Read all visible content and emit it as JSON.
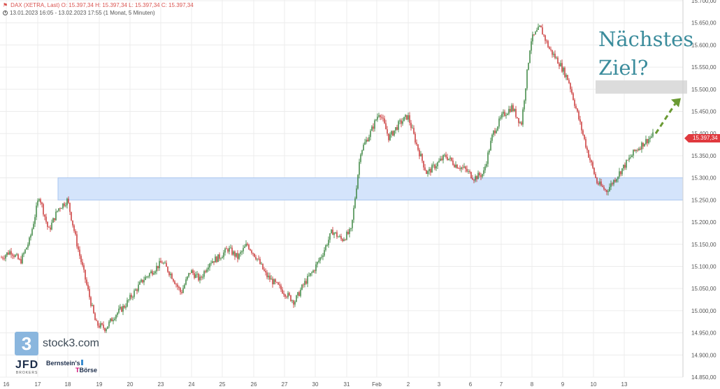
{
  "header": {
    "symbol_icon": "flag-icon",
    "line1": "DAX (XETRA, Last)  O: 15.397,34  H: 15.397,34  L: 15.397,34  C: 15.397,34",
    "line2": "13.01.2023 16:05 - 13.02.2023 17:55  (1 Monat, 5 Minuten)"
  },
  "annotation": {
    "line1": "Nächstes",
    "line2": "Ziel?"
  },
  "price_tag": "15.397,34",
  "logos": {
    "stock3_mark": "3",
    "stock3_word": "stock3.com",
    "jfd": "JFD",
    "jfd_sub": "BROKERS",
    "bernstein_line1": "Bernstein's",
    "bernstein_line2": "Börse"
  },
  "colors": {
    "up": "#2e7d32",
    "down": "#c62828",
    "support_zone": "#d4e4fb",
    "support_border": "#a9c6f0",
    "target_zone": "#dcdcdc",
    "arrow": "#6a9a33",
    "grid": "#ececec"
  },
  "chart_data": {
    "type": "candlestick",
    "title": "",
    "xlabel": "",
    "ylabel": "",
    "ylim": [
      14850,
      15700
    ],
    "y_ticks": [
      "14.850,00",
      "14.900,00",
      "14.950,00",
      "15.000,00",
      "15.050,00",
      "15.100,00",
      "15.150,00",
      "15.200,00",
      "15.250,00",
      "15.300,00",
      "15.350,00",
      "15.400,00",
      "15.450,00",
      "15.500,00",
      "15.550,00",
      "15.600,00",
      "15.650,00",
      "15.700,00"
    ],
    "x_ticks": [
      "16",
      "17",
      "18",
      "19",
      "20",
      "23",
      "24",
      "25",
      "26",
      "27",
      "30",
      "31",
      "Feb",
      "2",
      "3",
      "6",
      "7",
      "8",
      "9",
      "10",
      "13"
    ],
    "grid": true,
    "last_price": 15397.34,
    "zones": [
      {
        "name": "support",
        "from": 15250,
        "to": 15300,
        "start": "18"
      },
      {
        "name": "target",
        "from": 15490,
        "to": 15520,
        "start": "10"
      }
    ],
    "arrow": {
      "from": 15400,
      "to": 15480
    },
    "price_path": [
      [
        "16",
        15120
      ],
      [
        "16.5",
        15135
      ],
      [
        "17",
        15110
      ],
      [
        "17.5",
        15160
      ],
      [
        "17.7",
        15260
      ],
      [
        "18",
        15180
      ],
      [
        "18.5",
        15230
      ],
      [
        "18.8",
        15250
      ],
      [
        "19",
        15150
      ],
      [
        "19.3",
        15060
      ],
      [
        "19.6",
        14970
      ],
      [
        "20",
        14960
      ],
      [
        "20.5",
        14990
      ],
      [
        "21",
        15010
      ],
      [
        "22",
        15040
      ],
      [
        "23",
        15070
      ],
      [
        "23.5",
        15090
      ],
      [
        "24",
        15110
      ],
      [
        "24.5",
        15080
      ],
      [
        "25",
        15040
      ],
      [
        "25.3",
        15090
      ],
      [
        "25.6",
        15070
      ],
      [
        "26",
        15110
      ],
      [
        "26.5",
        15120
      ],
      [
        "27",
        15140
      ],
      [
        "27.5",
        15120
      ],
      [
        "28",
        15150
      ],
      [
        "29",
        15120
      ],
      [
        "30",
        15080
      ],
      [
        "30.5",
        15060
      ],
      [
        "31",
        15040
      ],
      [
        "31.5",
        15020
      ],
      [
        "31.8",
        15060
      ],
      [
        "32",
        15090
      ],
      [
        "32.5",
        15130
      ],
      [
        "33",
        15180
      ],
      [
        "33.3",
        15160
      ],
      [
        "33.6",
        15180
      ],
      [
        "34",
        15360
      ],
      [
        "34.5",
        15400
      ],
      [
        "35",
        15450
      ],
      [
        "35.5",
        15390
      ],
      [
        "36",
        15420
      ],
      [
        "36.5",
        15440
      ],
      [
        "37",
        15370
      ],
      [
        "37.5",
        15310
      ],
      [
        "38",
        15330
      ],
      [
        "38.5",
        15350
      ],
      [
        "39",
        15330
      ],
      [
        "39.5",
        15320
      ],
      [
        "40",
        15300
      ],
      [
        "40.2",
        15310
      ],
      [
        "40.5",
        15400
      ],
      [
        "41",
        15440
      ],
      [
        "41.5",
        15460
      ],
      [
        "41.8",
        15420
      ],
      [
        "42",
        15610
      ],
      [
        "42.3",
        15640
      ],
      [
        "42.6",
        15590
      ],
      [
        "42.9",
        15560
      ],
      [
        "43",
        15520
      ],
      [
        "43.3",
        15440
      ],
      [
        "43.6",
        15360
      ],
      [
        "43.9",
        15290
      ],
      [
        "44.2",
        15270
      ],
      [
        "44.5",
        15300
      ],
      [
        "45",
        15330
      ],
      [
        "45.5",
        15360
      ],
      [
        "46",
        15380
      ],
      [
        "46.5",
        15397
      ]
    ]
  }
}
